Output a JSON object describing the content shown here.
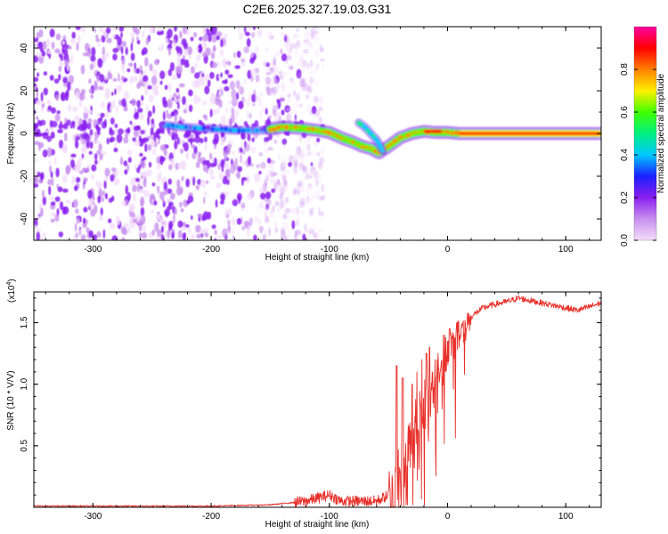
{
  "title": "C2E6.2025.327.19.03.G31",
  "colors": {
    "axis": "#000000",
    "snr_line": "#e8302a",
    "colorbar_stops": [
      "#f4ddfb",
      "#c890ee",
      "#8a1ef0",
      "#1a20ff",
      "#00c8ff",
      "#00f080",
      "#40ff00",
      "#fff000",
      "#ff8000",
      "#ff0000",
      "#ff00a0"
    ]
  },
  "chart_data": [
    {
      "type": "heatmap",
      "name": "spectrogram",
      "xlabel": "Height of straight line (km)",
      "ylabel": "Frequency (Hz)",
      "xlim": [
        -350,
        130
      ],
      "ylim": [
        -50,
        50
      ],
      "xticks": [
        -300,
        -200,
        -100,
        0,
        100
      ],
      "xtick_labels": [
        "-300",
        "-200",
        "-100",
        "0",
        "100"
      ],
      "yticks": [
        -40,
        -20,
        0,
        20,
        40
      ],
      "ytick_labels": [
        "-40",
        "-20",
        "0",
        "20",
        "40"
      ],
      "noise_region_km": [
        -350,
        -140
      ],
      "tracks": [
        {
          "name": "weak-track",
          "points": [
            [
              -240,
              4
            ],
            [
              -225,
              3
            ],
            [
              -210,
              2.5
            ],
            [
              -195,
              2
            ],
            [
              -180,
              1.5
            ],
            [
              -165,
              1.5
            ],
            [
              -150,
              1.5
            ]
          ],
          "amplitude": 0.3
        },
        {
          "name": "main-track",
          "points": [
            [
              -150,
              2
            ],
            [
              -140,
              3
            ],
            [
              -125,
              2.5
            ],
            [
              -110,
              1.5
            ],
            [
              -100,
              0.5
            ],
            [
              -90,
              -2
            ],
            [
              -80,
              -4
            ],
            [
              -72,
              -6
            ],
            [
              -65,
              -7
            ],
            [
              -58,
              -9
            ],
            [
              -50,
              -6
            ],
            [
              -45,
              -4
            ],
            [
              -40,
              -2
            ],
            [
              -30,
              0
            ],
            [
              -20,
              1
            ],
            [
              -10,
              0.5
            ],
            [
              0,
              0.5
            ],
            [
              10,
              0
            ],
            [
              60,
              0
            ],
            [
              130,
              0
            ]
          ],
          "amplitude": 0.9
        },
        {
          "name": "branch-track",
          "points": [
            [
              -75,
              5
            ],
            [
              -70,
              3
            ],
            [
              -65,
              0
            ],
            [
              -60,
              -3
            ],
            [
              -55,
              -8
            ]
          ],
          "amplitude": 0.45
        }
      ],
      "colorbar": {
        "label": "Normalized spectral amplitude",
        "range": [
          0,
          1
        ],
        "ticks": [
          0.0,
          0.2,
          0.4,
          0.6,
          0.8
        ],
        "tick_labels": [
          "0.0",
          "0.2",
          "0.4",
          "0.6",
          "0.8"
        ]
      }
    },
    {
      "type": "line",
      "name": "snr",
      "xlabel": "Height of straight line (km)",
      "ylabel": "SNR (10 * V/V)",
      "yscale_label": "(x10",
      "yscale_exponent": "4",
      "xlim": [
        -350,
        130
      ],
      "ylim": [
        0,
        1.75
      ],
      "xticks": [
        -300,
        -200,
        -100,
        0,
        100
      ],
      "xtick_labels": [
        "-300",
        "-200",
        "-100",
        "0",
        "100"
      ],
      "yticks": [
        0.5,
        1.0,
        1.5
      ],
      "ytick_labels": [
        "0.5",
        "1.0",
        "1.5"
      ],
      "envelope": [
        [
          -350,
          0.01
        ],
        [
          -200,
          0.01
        ],
        [
          -150,
          0.02
        ],
        [
          -120,
          0.05
        ],
        [
          -100,
          0.1
        ],
        [
          -90,
          0.05
        ],
        [
          -60,
          0.05
        ],
        [
          -50,
          0.1
        ],
        [
          -45,
          0.15
        ],
        [
          -40,
          0.3
        ],
        [
          -35,
          0.45
        ],
        [
          -30,
          0.6
        ],
        [
          -25,
          0.75
        ],
        [
          -20,
          0.85
        ],
        [
          -15,
          0.95
        ],
        [
          -10,
          1.05
        ],
        [
          -5,
          1.2
        ],
        [
          0,
          1.3
        ],
        [
          10,
          1.45
        ],
        [
          20,
          1.55
        ],
        [
          30,
          1.62
        ],
        [
          40,
          1.65
        ],
        [
          50,
          1.67
        ],
        [
          60,
          1.7
        ],
        [
          70,
          1.68
        ],
        [
          80,
          1.66
        ],
        [
          90,
          1.64
        ],
        [
          100,
          1.62
        ],
        [
          110,
          1.6
        ],
        [
          120,
          1.63
        ],
        [
          130,
          1.66
        ]
      ],
      "spikes": [
        [
          -43,
          1.15
        ],
        [
          -38,
          1.05
        ],
        [
          -30,
          1.0
        ],
        [
          -26,
          1.1
        ],
        [
          -22,
          1.2
        ],
        [
          -18,
          1.25
        ],
        [
          -15,
          1.3
        ],
        [
          -10,
          1.2
        ],
        [
          -8,
          1.25
        ],
        [
          -3,
          1.4
        ],
        [
          2,
          1.45
        ],
        [
          8,
          1.5
        ]
      ]
    }
  ]
}
